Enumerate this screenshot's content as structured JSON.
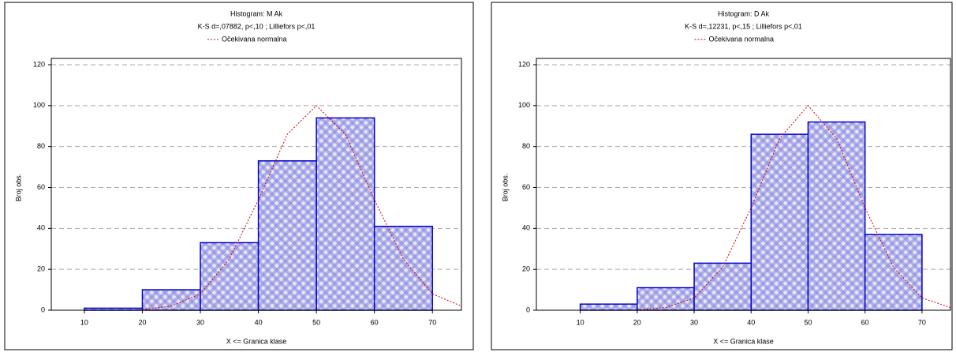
{
  "chart_data": [
    {
      "type": "histogram",
      "title": "Histogram: M Ak",
      "subtitle": "K-S d=,07882, p<,10 ; Lilliefors p<,01",
      "x_label": "X <= Granica klase",
      "y_label": "Broj obs.",
      "bins": [
        10,
        20,
        30,
        40,
        50,
        60,
        70
      ],
      "values": [
        1,
        10,
        33,
        73,
        94,
        41
      ],
      "color": "#0000cc",
      "xlim": [
        4.3,
        75
      ],
      "xticks": [
        10,
        20,
        30,
        40,
        50,
        60,
        70
      ],
      "ylim": [
        0,
        120
      ],
      "yticks": [
        0,
        20,
        40,
        60,
        80,
        100,
        120
      ],
      "grid": true,
      "curve": {
        "name": "Očekivana normalna",
        "color": "#cc0000",
        "x": [
          20,
          25,
          30,
          35,
          40,
          45,
          50,
          55,
          60,
          65,
          70,
          75
        ],
        "values": [
          0.4,
          2,
          8,
          25,
          54,
          86,
          100,
          86,
          54,
          25,
          8,
          2
        ]
      }
    },
    {
      "type": "histogram",
      "title": "Histogram: D Ak",
      "subtitle": "K-S d=,12231, p<,15 ; Lilliefors p<,01",
      "x_label": "X <= Granica klase",
      "y_label": "Broj obs.",
      "bins": [
        10,
        20,
        30,
        40,
        50,
        60,
        70
      ],
      "values": [
        3,
        11,
        23,
        86,
        92,
        37
      ],
      "color": "#0000cc",
      "xlim": [
        2.3,
        75
      ],
      "xticks": [
        10,
        20,
        30,
        40,
        50,
        60,
        70
      ],
      "ylim": [
        0,
        120
      ],
      "yticks": [
        0,
        20,
        40,
        60,
        80,
        100,
        120
      ],
      "grid": true,
      "curve": {
        "name": "Očekivana normalna",
        "color": "#cc0000",
        "x": [
          20,
          25,
          30,
          35,
          40,
          45,
          50,
          55,
          60,
          65,
          70,
          75
        ],
        "values": [
          0.2,
          1.3,
          6,
          21,
          50,
          84,
          100,
          84,
          50,
          21,
          6,
          1.3
        ]
      }
    }
  ]
}
